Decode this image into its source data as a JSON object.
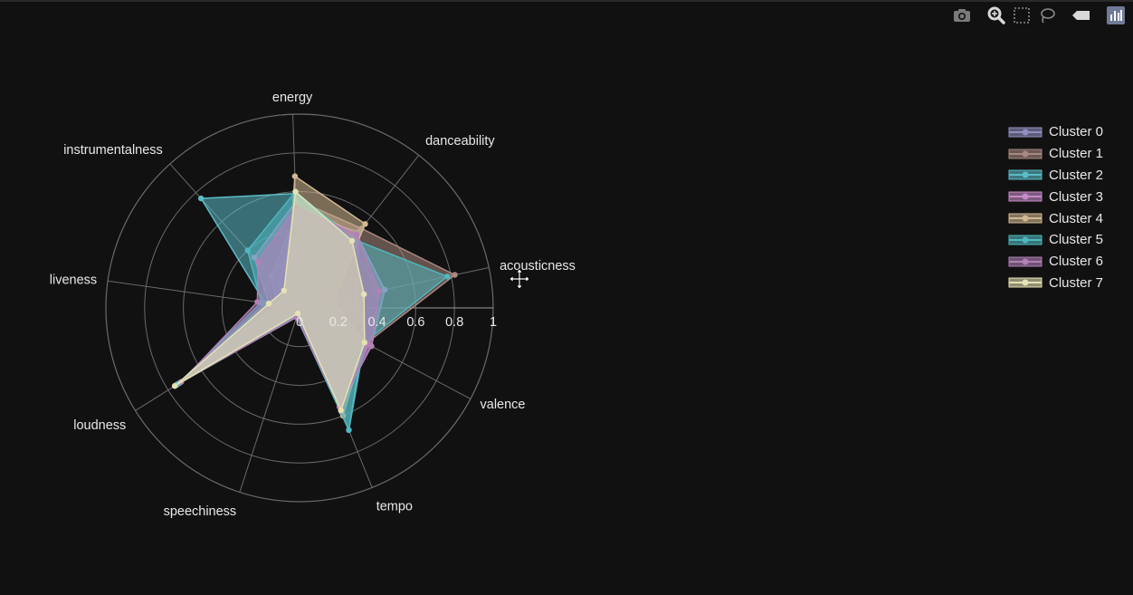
{
  "modebar": {
    "buttons": [
      {
        "name": "camera-icon",
        "title": "Download plot as a png"
      },
      {
        "name": "zoom-icon",
        "title": "Zoom"
      },
      {
        "name": "box-select-icon",
        "title": "Box Select"
      },
      {
        "name": "lasso-icon",
        "title": "Lasso Select"
      },
      {
        "name": "eraser-icon",
        "title": "Erase active shape"
      },
      {
        "name": "plotly-logo-icon",
        "title": "Produced with Plotly"
      }
    ]
  },
  "chart_data": {
    "type": "radar",
    "axes": [
      "acousticness",
      "danceability",
      "energy",
      "instrumentalness",
      "liveness",
      "loudness",
      "speechiness",
      "tempo",
      "valence"
    ],
    "radial_ticks": [
      "0",
      "0.2",
      "0.4",
      "0.6",
      "0.8",
      "1"
    ],
    "radial_range": [
      0,
      1
    ],
    "colors": {
      "background": "#111111",
      "grid": "#6a6a6a",
      "text": "#e8e8e8"
    },
    "legend_position": "top-right",
    "series": [
      {
        "name": "Cluster 0",
        "color": "#8f8fc0",
        "values": [
          0.3,
          0.5,
          0.48,
          0.22,
          0.12,
          0.74,
          0.03,
          0.58,
          0.4
        ]
      },
      {
        "name": "Cluster 1",
        "color": "#a98880",
        "values": [
          0.82,
          0.52,
          0.56,
          0.15,
          0.14,
          0.75,
          0.05,
          0.57,
          0.39
        ]
      },
      {
        "name": "Cluster 2",
        "color": "#5bbcc8",
        "values": [
          0.15,
          0.43,
          0.59,
          0.76,
          0.18,
          0.74,
          0.05,
          0.68,
          0.37
        ]
      },
      {
        "name": "Cluster 3",
        "color": "#c68ac8",
        "values": [
          0.45,
          0.48,
          0.55,
          0.35,
          0.16,
          0.73,
          0.04,
          0.55,
          0.42
        ]
      },
      {
        "name": "Cluster 4",
        "color": "#d2b892",
        "values": [
          0.18,
          0.55,
          0.68,
          0.1,
          0.12,
          0.75,
          0.04,
          0.6,
          0.38
        ]
      },
      {
        "name": "Cluster 5",
        "color": "#50b7be",
        "values": [
          0.78,
          0.45,
          0.6,
          0.4,
          0.2,
          0.74,
          0.04,
          0.68,
          0.38
        ]
      },
      {
        "name": "Cluster 6",
        "color": "#b180b7",
        "values": [
          0.42,
          0.48,
          0.52,
          0.32,
          0.22,
          0.72,
          0.05,
          0.55,
          0.42
        ]
      },
      {
        "name": "Cluster 7",
        "color": "#e6e2b4",
        "values": [
          0.34,
          0.44,
          0.6,
          0.12,
          0.16,
          0.76,
          0.03,
          0.57,
          0.38
        ]
      }
    ]
  }
}
